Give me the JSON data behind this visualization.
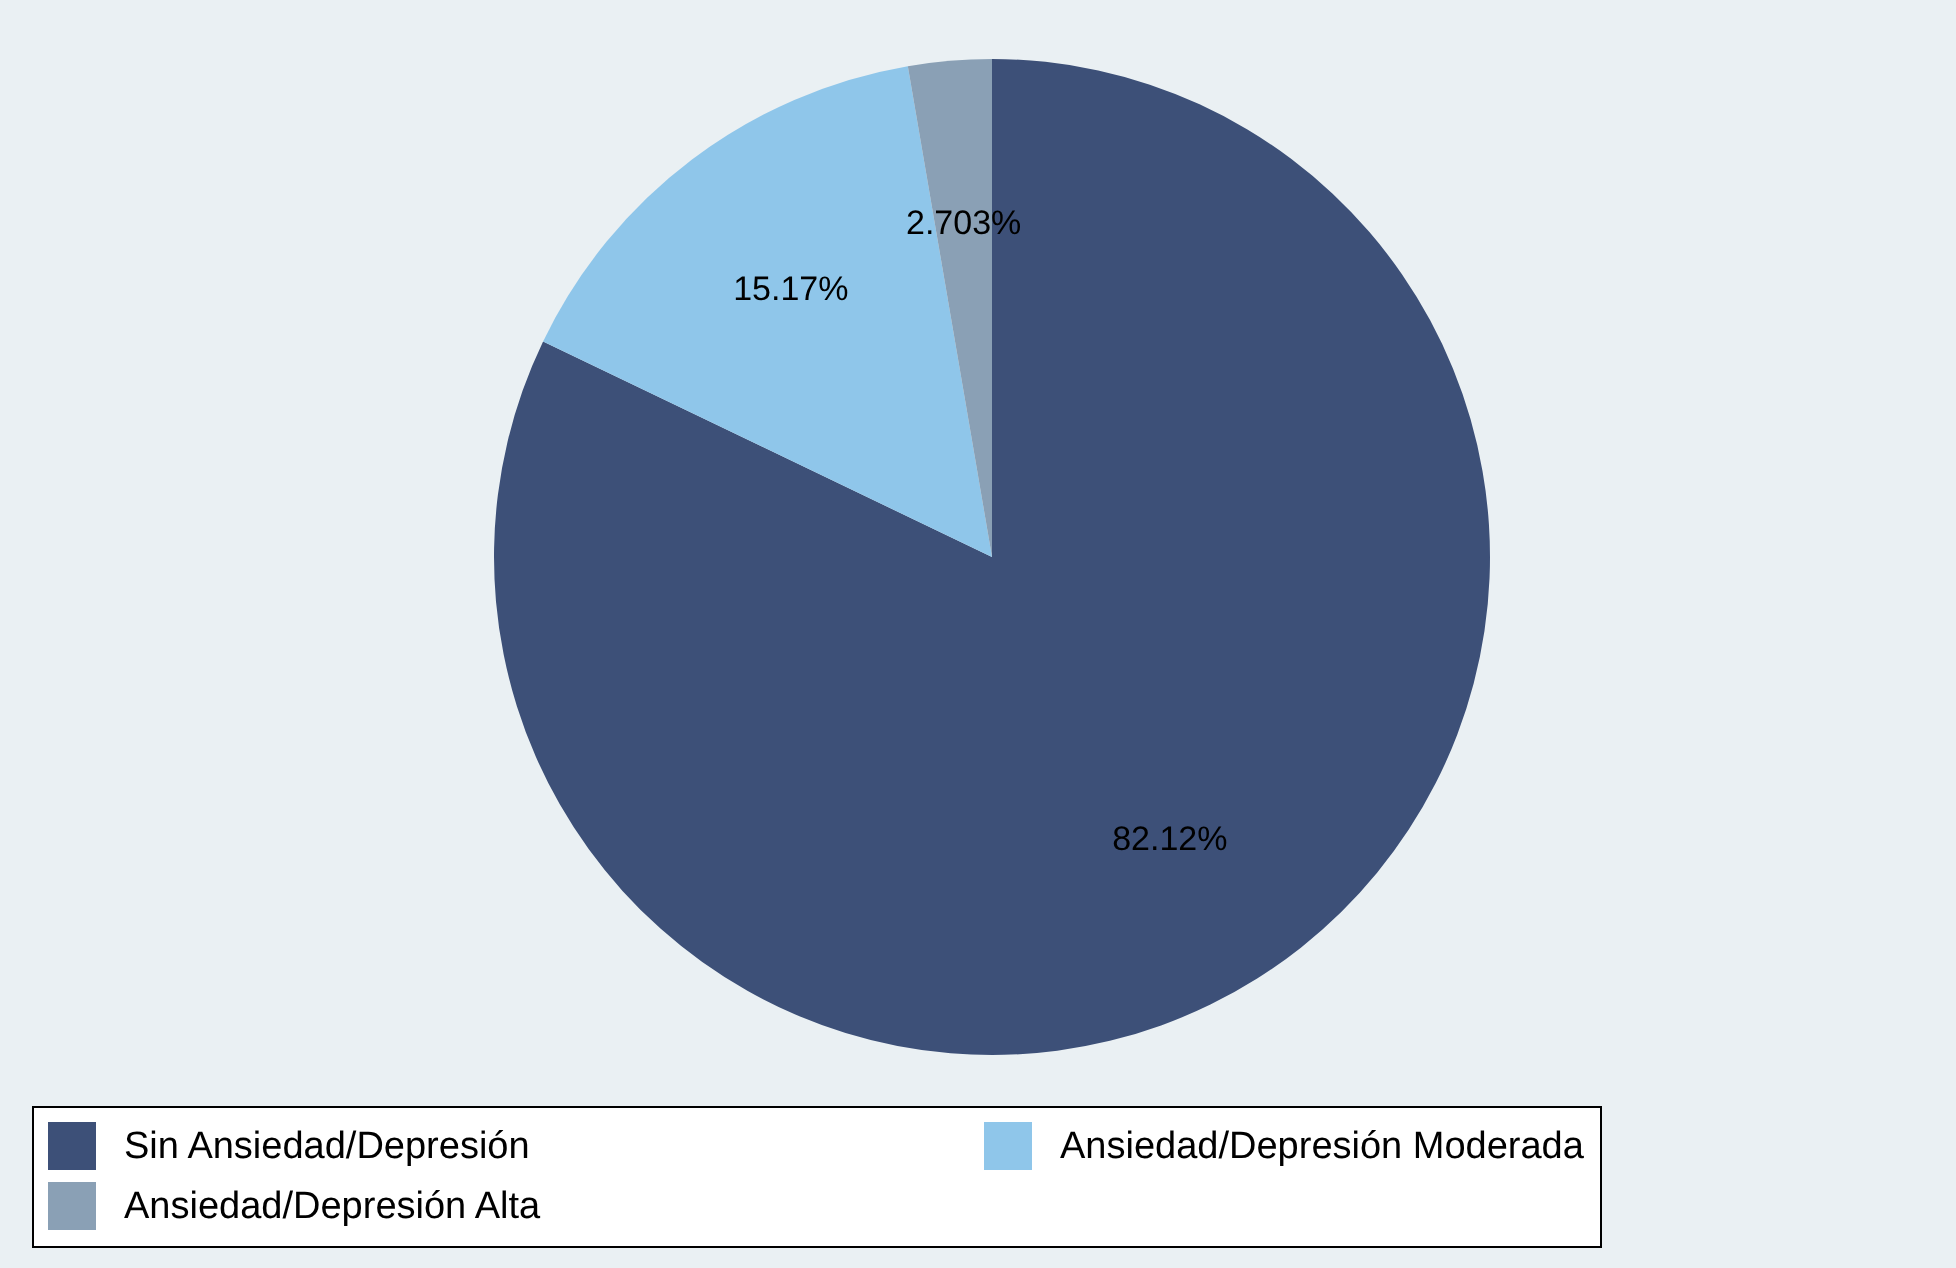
{
  "chart_data": {
    "type": "pie",
    "categories": [
      "Sin Ansiedad/Depresión",
      "Ansiedad/Depresión Moderada",
      "Ansiedad/Depresión Alta"
    ],
    "values": [
      82.12,
      15.17,
      2.703
    ],
    "colors": [
      "#3d5078",
      "#8fc6ea",
      "#8aa0b5"
    ],
    "value_labels": [
      "82.12%",
      "15.17%",
      "2.703%"
    ],
    "legend": "bottom"
  }
}
